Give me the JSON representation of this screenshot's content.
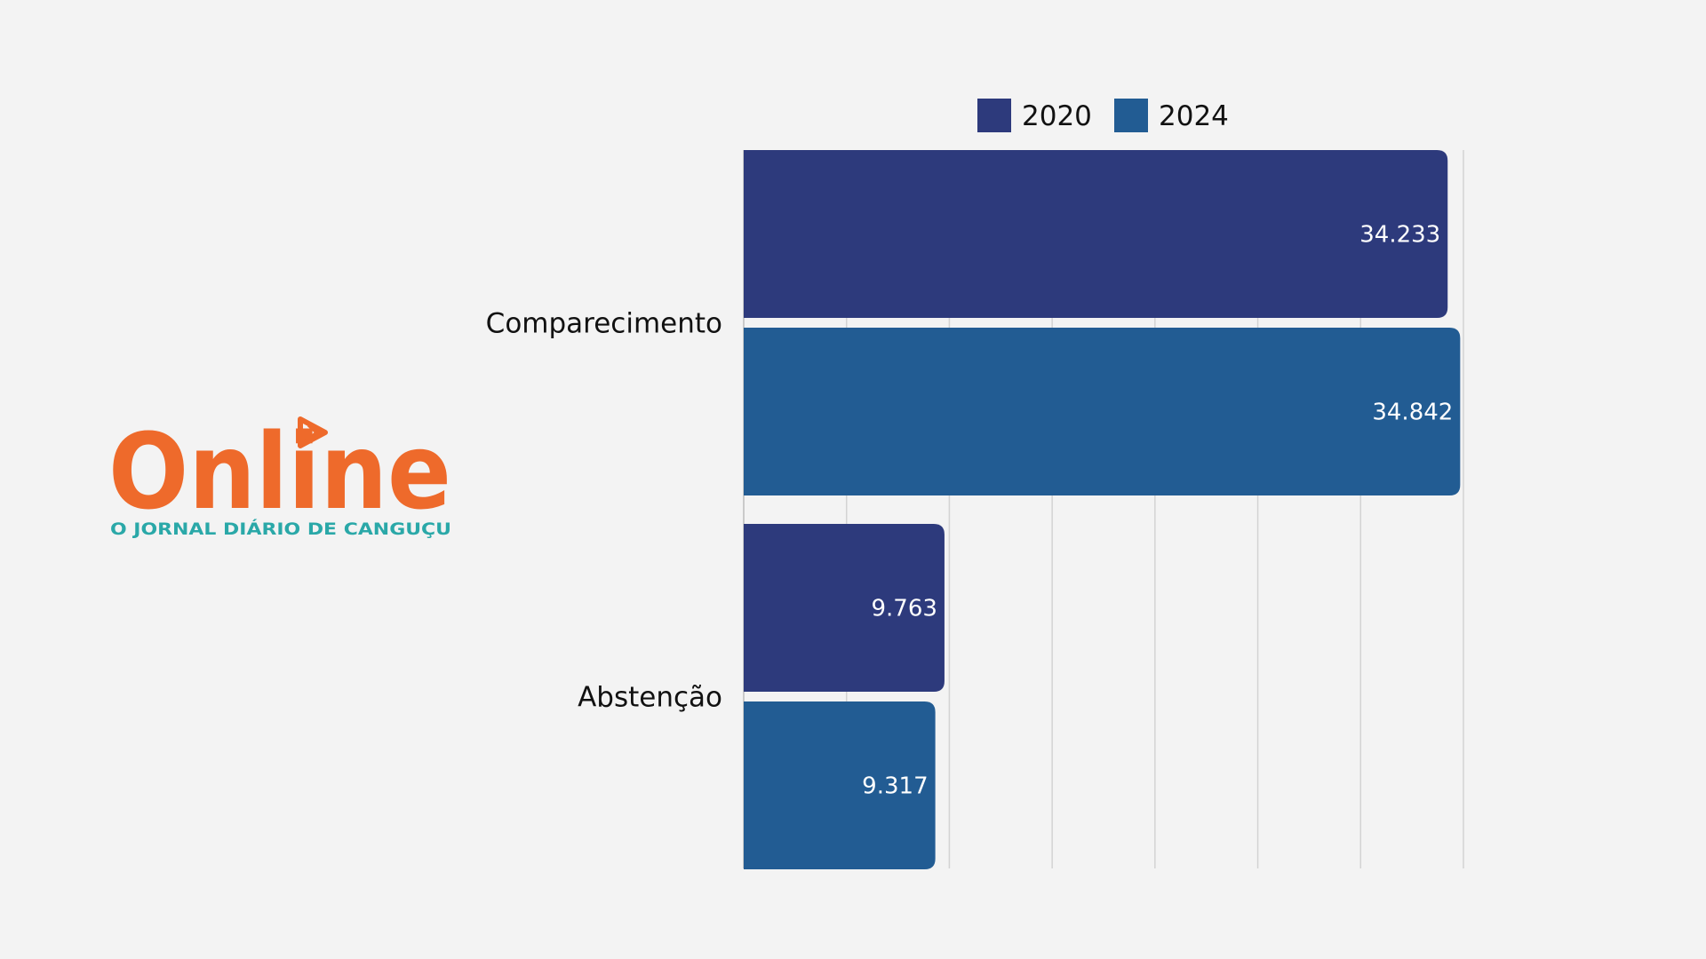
{
  "logo": {
    "wordmark": "Online",
    "tagline": "O JORNAL DIÁRIO DE CANGUÇU",
    "wordmark_color": "#ee6a2b",
    "tagline_color": "#2aa8a8"
  },
  "chart_data": {
    "type": "bar",
    "orientation": "horizontal",
    "categories": [
      "Comparecimento",
      "Abstenção"
    ],
    "series": [
      {
        "name": "2020",
        "color": "#2d3a7c",
        "values": [
          34233,
          9763
        ],
        "labels": [
          "34.233",
          "9.763"
        ]
      },
      {
        "name": "2024",
        "color": "#225c93",
        "values": [
          34842,
          9317
        ],
        "labels": [
          "34.842",
          "9.317"
        ]
      }
    ],
    "xlim": [
      0,
      35000
    ],
    "grid": true,
    "legend": "top"
  }
}
